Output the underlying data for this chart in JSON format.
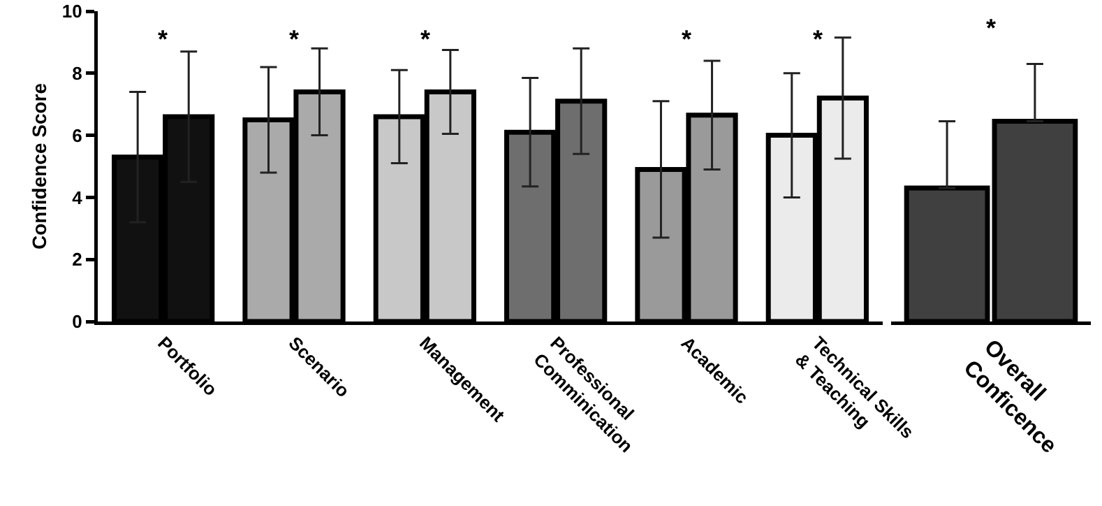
{
  "chart_data": [
    {
      "type": "bar",
      "ylabel": "Confidence Score",
      "categories": [
        "Portfolio",
        "Scenario",
        "Management",
        "Professional\nComminication",
        "Academic",
        "Technical Skills\n& Teaching"
      ],
      "series": [
        {
          "colors": [
            "#111111",
            "#aaaaaa",
            "#c8c8c8",
            "#6e6e6e",
            "#9a9a9a",
            "#ebebeb"
          ],
          "values": [
            5.3,
            6.5,
            6.6,
            6.1,
            4.9,
            6.0
          ],
          "errors": [
            2.1,
            1.7,
            1.5,
            1.75,
            2.2,
            2.0
          ]
        },
        {
          "colors": [
            "#111111",
            "#aaaaaa",
            "#c8c8c8",
            "#6e6e6e",
            "#9a9a9a",
            "#ebebeb"
          ],
          "values": [
            6.6,
            7.4,
            7.4,
            7.1,
            6.65,
            7.2
          ],
          "errors": [
            2.1,
            1.4,
            1.35,
            1.7,
            1.75,
            1.95
          ]
        }
      ],
      "ylim": [
        0,
        10
      ],
      "yticks": [
        0,
        2,
        4,
        6,
        8,
        10
      ],
      "grid": false,
      "annotations": [
        "*",
        "*",
        "*",
        "*",
        "*"
      ]
    },
    {
      "type": "bar",
      "categories": [
        "Overall\nConficence"
      ],
      "series": [
        {
          "color": "#404040",
          "values": [
            4.3
          ],
          "errors": [
            [
              4.3,
              6.45
            ]
          ]
        },
        {
          "color": "#404040",
          "values": [
            6.45
          ],
          "errors": [
            [
              6.45,
              8.3
            ]
          ]
        }
      ],
      "ylim": [
        0,
        10
      ],
      "yticks": [
        0,
        2,
        4,
        6,
        8,
        10
      ],
      "tick_labels": "x",
      "grid": false,
      "annotations": [
        "*"
      ]
    }
  ]
}
